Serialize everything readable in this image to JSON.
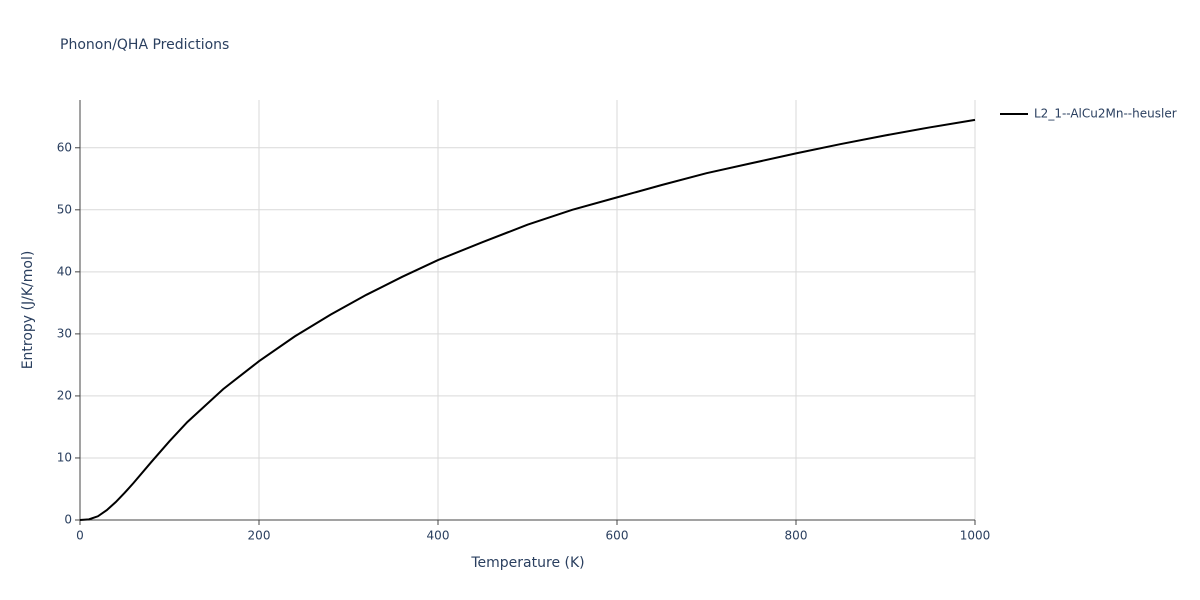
{
  "chart_data": {
    "type": "line",
    "title": "Phonon/QHA Predictions",
    "xlabel": "Temperature (K)",
    "ylabel": "Entropy (J/K/mol)",
    "x": [
      0,
      10,
      20,
      30,
      40,
      50,
      60,
      80,
      100,
      120,
      160,
      200,
      240,
      280,
      320,
      360,
      400,
      450,
      500,
      550,
      600,
      650,
      700,
      750,
      800,
      850,
      900,
      950,
      1000
    ],
    "series": [
      {
        "name": "L2_1--AlCu2Mn--heusler",
        "color": "#000000",
        "values": [
          0,
          0.1,
          0.6,
          1.6,
          2.9,
          4.4,
          6.0,
          9.4,
          12.7,
          15.8,
          21.1,
          25.6,
          29.6,
          33.1,
          36.3,
          39.2,
          41.9,
          44.8,
          47.6,
          50.0,
          52.0,
          54.0,
          55.9,
          57.5,
          59.1,
          60.6,
          62.0,
          63.3,
          64.5
        ]
      }
    ],
    "xlim": [
      0,
      1000
    ],
    "xticks": [
      0,
      200,
      400,
      600,
      800,
      1000
    ],
    "ylim": [
      0,
      67.7
    ],
    "yticks": [
      0,
      10,
      20,
      30,
      40,
      50,
      60
    ],
    "grid": true,
    "legend": "right"
  }
}
